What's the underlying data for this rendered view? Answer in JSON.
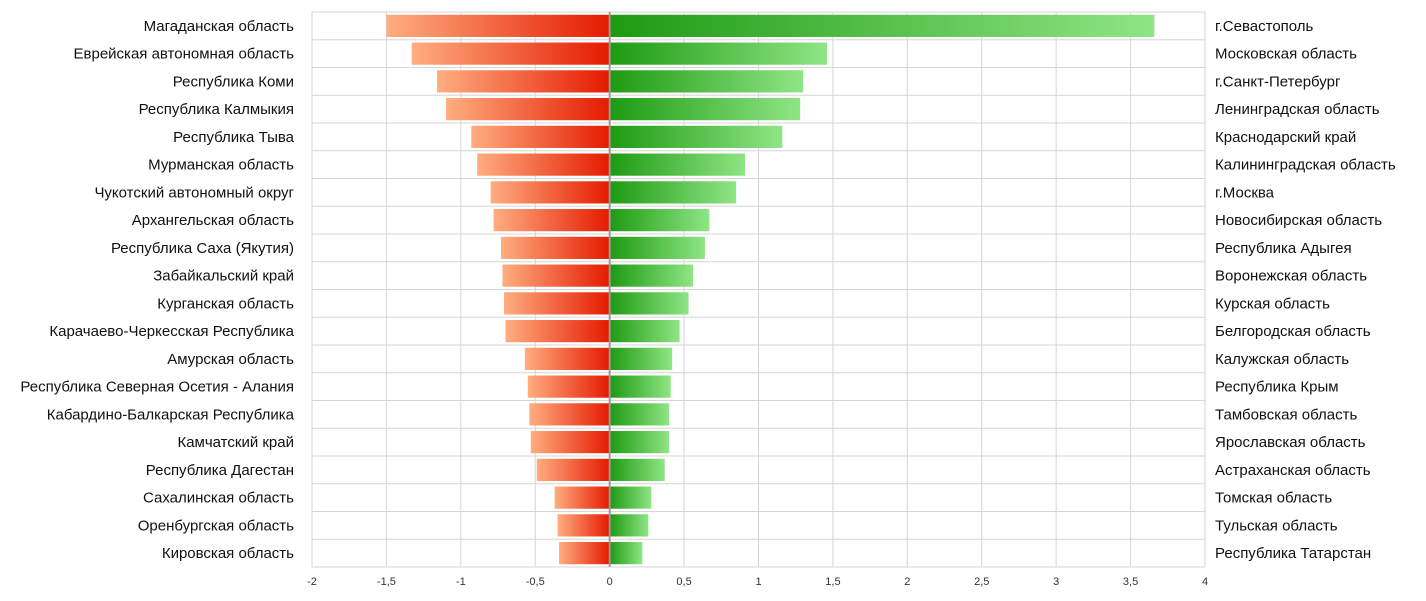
{
  "chart_data": {
    "type": "bar",
    "orientation": "horizontal",
    "title": "",
    "xlabel": "",
    "ylabel": "",
    "xlim": [
      -2,
      4
    ],
    "x_ticks": [
      -2,
      -1.5,
      -1,
      -0.5,
      0,
      0.5,
      1,
      1.5,
      2,
      2.5,
      3,
      3.5,
      4
    ],
    "x_tick_labels": [
      "-2",
      "-1,5",
      "-1",
      "-0,5",
      "0",
      "0,5",
      "1",
      "1,5",
      "2",
      "2,5",
      "3",
      "3,5",
      "4"
    ],
    "grid": true,
    "legend": "none",
    "colors": {
      "negative_dark": "#e51a00",
      "negative_light": "#ffae80",
      "positive_dark": "#1e9a12",
      "positive_light": "#8fe585"
    },
    "series": [
      {
        "categories": [
          "Магаданская область",
          "Еврейская автономная область",
          "Республика Коми",
          "Республика Калмыкия",
          "Республика Тыва",
          "Мурманская область",
          "Чукотский автономный округ",
          "Архангельская область",
          "Республика Саха (Якутия)",
          "Забайкальский край",
          "Курганская область",
          "Карачаево-Черкесская Республика",
          "Амурская область",
          "Республика Северная Осетия - Алания",
          "Кабардино-Балкарская Республика",
          "Камчатский край",
          "Республика Дагестан",
          "Сахалинская область",
          "Оренбургская область",
          "Кировская область"
        ],
        "values": [
          -1.5,
          -1.33,
          -1.16,
          -1.1,
          -0.93,
          -0.89,
          -0.8,
          -0.78,
          -0.73,
          -0.72,
          -0.71,
          -0.7,
          -0.57,
          -0.55,
          -0.54,
          -0.53,
          -0.49,
          -0.37,
          -0.35,
          -0.34
        ]
      },
      {
        "categories": [
          "г.Севастополь",
          "Московская область",
          "г.Санкт-Петербург",
          "Ленинградская область",
          "Краснодарский край",
          "Калининградская область",
          "г.Москва",
          "Новосибирская область",
          "Республика Адыгея",
          "Воронежская область",
          "Курская область",
          "Белгородская область",
          "Калужская область",
          "Республика Крым",
          "Тамбовская область",
          "Ярославская область",
          "Астраханская область",
          "Томская область",
          "Тульская область",
          "Республика Татарстан"
        ],
        "values": [
          3.66,
          1.46,
          1.3,
          1.28,
          1.16,
          0.91,
          0.85,
          0.67,
          0.64,
          0.56,
          0.53,
          0.47,
          0.42,
          0.41,
          0.4,
          0.4,
          0.37,
          0.28,
          0.26,
          0.22
        ]
      }
    ]
  }
}
